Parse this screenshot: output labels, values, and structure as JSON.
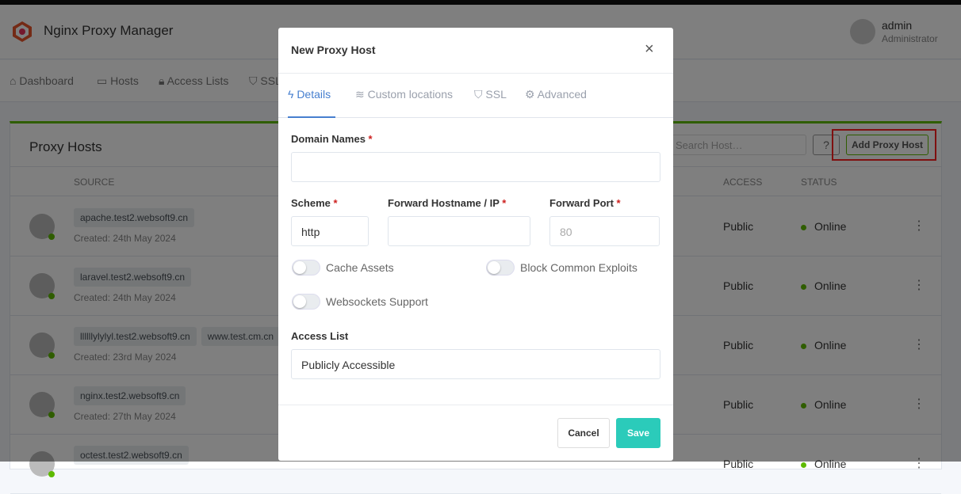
{
  "app": {
    "title": "Nginx Proxy Manager"
  },
  "user": {
    "name": "admin",
    "role": "Administrator"
  },
  "nav": [
    {
      "label": "Dashboard",
      "icon": "home-icon"
    },
    {
      "label": "Hosts",
      "icon": "monitor-icon"
    },
    {
      "label": "Access Lists",
      "icon": "lock-icon"
    },
    {
      "label": "SSL",
      "icon": "shield-icon"
    }
  ],
  "card": {
    "title": "Proxy Hosts",
    "search_placeholder": "Search Host…",
    "help": "?",
    "add_label": "Add Proxy Host"
  },
  "table": {
    "headers": {
      "source": "SOURCE",
      "access": "ACCESS",
      "status": "STATUS"
    },
    "rows": [
      {
        "domains": [
          "apache.test2.websoft9.cn"
        ],
        "created": "Created: 24th May 2024",
        "access": "Public",
        "status": "Online"
      },
      {
        "domains": [
          "laravel.test2.websoft9.cn"
        ],
        "created": "Created: 24th May 2024",
        "access": "Public",
        "status": "Online"
      },
      {
        "domains": [
          "llllllylylyl.test2.websoft9.cn",
          "www.test.cm.cn"
        ],
        "created": "Created: 23rd May 2024",
        "access": "Public",
        "status": "Online"
      },
      {
        "domains": [
          "nginx.test2.websoft9.cn"
        ],
        "created": "Created: 27th May 2024",
        "access": "Public",
        "status": "Online"
      },
      {
        "domains": [
          "octest.test2.websoft9.cn"
        ],
        "created": "",
        "access": "Public",
        "status": "Online"
      }
    ]
  },
  "modal": {
    "title": "New Proxy Host",
    "close": "×",
    "tabs": [
      {
        "label": "Details",
        "icon": "zap-icon"
      },
      {
        "label": "Custom locations",
        "icon": "layers-icon"
      },
      {
        "label": "SSL",
        "icon": "shield-icon"
      },
      {
        "label": "Advanced",
        "icon": "gear-icon"
      }
    ],
    "domain_label": "Domain Names",
    "domain_value": "",
    "scheme_label": "Scheme",
    "scheme_value": "http",
    "host_label": "Forward Hostname / IP",
    "host_value": "",
    "port_label": "Forward Port",
    "port_placeholder": "80",
    "required": "*",
    "toggles": {
      "cache": {
        "label": "Cache Assets",
        "on": false
      },
      "exploits": {
        "label": "Block Common Exploits",
        "on": false
      },
      "websockets": {
        "label": "Websockets Support",
        "on": false
      }
    },
    "access_label": "Access List",
    "access_value": "Publicly Accessible",
    "cancel": "Cancel",
    "save": "Save"
  },
  "colors": {
    "accent": "#467fcf",
    "success": "#5eba00",
    "save": "#2bcbba",
    "highlight": "#ff2020"
  }
}
